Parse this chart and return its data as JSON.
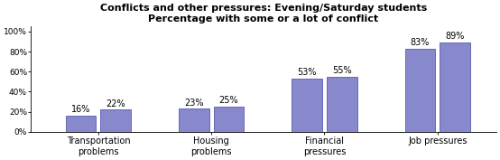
{
  "title_line1": "Conflicts and other pressures: Evening/Saturday students",
  "title_line2": "Percentage with some or a lot of conflict",
  "group_labels": [
    "Transportation\nproblems",
    "Housing\nproblems",
    "Financial\npressures",
    "Job pressures"
  ],
  "values": [
    16,
    22,
    23,
    25,
    53,
    55,
    83,
    89
  ],
  "bar_color": "#8888cc",
  "bar_edgecolor": "#4444aa",
  "background_color": "#ffffff",
  "ylim": [
    0,
    105
  ],
  "yticks": [
    0,
    20,
    40,
    60,
    80,
    100
  ],
  "ytick_labels": [
    "0%",
    "20%",
    "40%",
    "60%",
    "80%",
    "100%"
  ],
  "title_fontsize": 8,
  "tick_fontsize": 6.5,
  "label_fontsize": 7,
  "value_fontsize": 7
}
